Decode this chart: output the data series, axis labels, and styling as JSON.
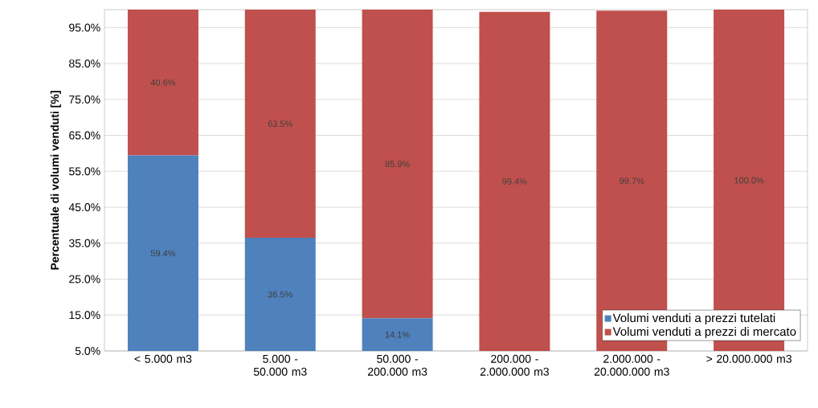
{
  "chart_data": {
    "type": "bar",
    "stacked": true,
    "ylabel": "Percentuale di volumi venduti [%]",
    "categories": [
      "< 5.000 m3",
      "5.000 - 50.000 m3",
      "50.000 - 200.000 m3",
      "200.000 - 2.000.000 m3",
      "2.000.000 - 20.000.000 m3",
      "> 20.000.000 m3"
    ],
    "series": [
      {
        "name": "Volumi venduti a prezzi tutelati",
        "color": "#4f81bd",
        "values": [
          59.4,
          36.5,
          14.1,
          null,
          null,
          null
        ],
        "value_labels": [
          "59.4%",
          "36.5%",
          "14.1%",
          null,
          null,
          null
        ]
      },
      {
        "name": "Volumi venduti a prezzi di mercato",
        "color": "#c0504d",
        "values": [
          40.6,
          63.5,
          85.9,
          99.4,
          99.7,
          100.0
        ],
        "value_labels": [
          "40.6%",
          "63.5%",
          "85.9%",
          "99.4%",
          "99.7%",
          "100.0%"
        ]
      }
    ],
    "ylim": [
      5,
      100
    ],
    "yticks": [
      {
        "value": 5,
        "label": "5.0%"
      },
      {
        "value": 15,
        "label": "15.0%"
      },
      {
        "value": 25,
        "label": "25.0%"
      },
      {
        "value": 35,
        "label": "35.0%"
      },
      {
        "value": 45,
        "label": "45.0%"
      },
      {
        "value": 55,
        "label": "55.0%"
      },
      {
        "value": 65,
        "label": "65.0%"
      },
      {
        "value": 75,
        "label": "75.0%"
      },
      {
        "value": 85,
        "label": "85.0%"
      },
      {
        "value": 95,
        "label": "95.0%"
      }
    ],
    "grid": "y",
    "legend": "bottom right"
  }
}
